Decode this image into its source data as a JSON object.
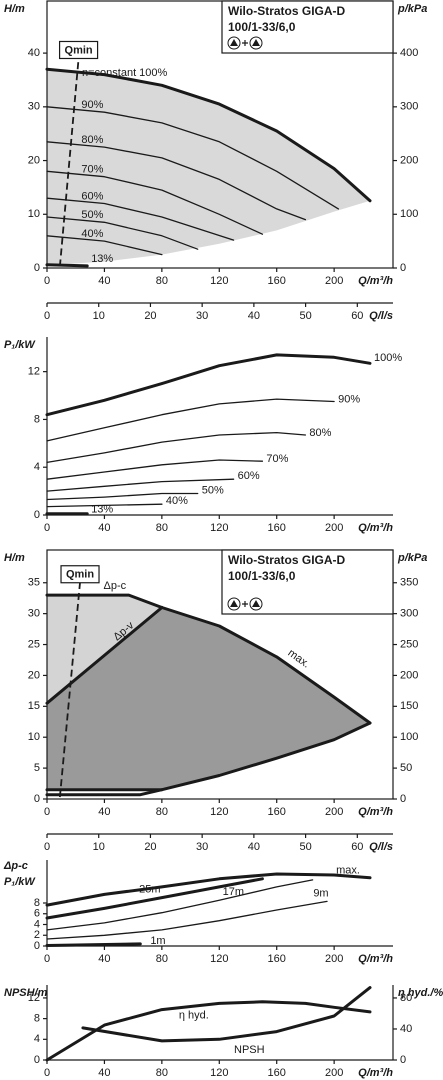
{
  "chart_data": [
    {
      "type": "line",
      "title": "Wilo-Stratos GIGA-D",
      "subtitle": "100/1-33/6,0",
      "frame": "box",
      "ylabel": "H/m",
      "y2label": "p/kPa",
      "xlabel": "Q/m³/h",
      "x2label": "Q/l/s",
      "xlim": [
        0,
        241
      ],
      "xticks": [
        0,
        40,
        80,
        120,
        160,
        200
      ],
      "x2lim": [
        0,
        66.9
      ],
      "x2ticks": [
        0,
        10,
        20,
        30,
        40,
        50,
        60
      ],
      "ylim": [
        0,
        49.7
      ],
      "yticks": [
        0,
        10,
        20,
        30,
        40
      ],
      "y2lim": [
        0,
        497
      ],
      "y2ticks": [
        0,
        100,
        200,
        300,
        400
      ],
      "annotation": "n=constant 100%",
      "qmin": {
        "label": "Qmin",
        "x": [
          9,
          22
        ],
        "values": [
          0.3,
          39
        ]
      },
      "regions": [
        {
          "color": "#d9d9d9",
          "x": [
            0,
            40,
            80,
            120,
            160,
            200,
            225,
            200,
            160,
            120,
            80,
            40,
            0
          ],
          "values": [
            37,
            36,
            34,
            30.5,
            25.5,
            18.5,
            12.5,
            10.5,
            7,
            4.5,
            2.5,
            1.2,
            0.5
          ]
        }
      ],
      "series": [
        {
          "color": "#1a1a1a",
          "style": "thick",
          "x": [
            0,
            40,
            80,
            120,
            160,
            200,
            225
          ],
          "values": [
            37,
            36,
            34,
            30.5,
            25.5,
            18.5,
            12.5
          ]
        },
        {
          "name": "90%",
          "color": "#1a1a1a",
          "style": "thin",
          "x": [
            0,
            40,
            80,
            120,
            160,
            203
          ],
          "values": [
            30,
            29,
            27,
            23.5,
            18,
            11
          ]
        },
        {
          "name": "80%",
          "color": "#1a1a1a",
          "style": "thin",
          "x": [
            0,
            40,
            80,
            120,
            160,
            180
          ],
          "values": [
            23.5,
            22.5,
            20.5,
            16.5,
            11,
            9
          ]
        },
        {
          "name": "70%",
          "color": "#1a1a1a",
          "style": "thin",
          "x": [
            0,
            40,
            80,
            120,
            150
          ],
          "values": [
            18,
            17,
            14.5,
            10,
            6.3
          ]
        },
        {
          "name": "60%",
          "color": "#1a1a1a",
          "style": "thin",
          "x": [
            0,
            40,
            80,
            130
          ],
          "values": [
            13,
            12,
            9.5,
            5.2
          ]
        },
        {
          "name": "50%",
          "color": "#1a1a1a",
          "style": "thin",
          "x": [
            0,
            40,
            80,
            105
          ],
          "values": [
            9.5,
            8.5,
            6,
            3.5
          ]
        },
        {
          "name": "40%",
          "color": "#1a1a1a",
          "style": "thin",
          "x": [
            0,
            40,
            80
          ],
          "values": [
            6,
            5,
            2.5
          ]
        },
        {
          "name": "13%",
          "color": "#1a1a1a",
          "style": "thick",
          "x": [
            0,
            28
          ],
          "values": [
            0.6,
            0.4
          ]
        }
      ]
    },
    {
      "type": "line",
      "frame": "axes",
      "ylabel": "P₁/kW",
      "xlabel": "Q/m³/h",
      "xlim": [
        0,
        241
      ],
      "xticks": [
        0,
        40,
        80,
        120,
        160,
        200
      ],
      "ylim": [
        0,
        14.9
      ],
      "yticks": [
        0,
        4,
        8,
        12
      ],
      "series": [
        {
          "name": "100%",
          "color": "#1a1a1a",
          "style": "thick",
          "x": [
            0,
            40,
            80,
            120,
            160,
            200,
            225
          ],
          "values": [
            8.4,
            9.6,
            11,
            12.5,
            13.4,
            13.2,
            12.7
          ]
        },
        {
          "name": "90%",
          "color": "#1a1a1a",
          "style": "thin",
          "x": [
            0,
            40,
            80,
            120,
            160,
            200
          ],
          "values": [
            6.2,
            7.3,
            8.4,
            9.3,
            9.7,
            9.5
          ]
        },
        {
          "name": "80%",
          "color": "#1a1a1a",
          "style": "thin",
          "x": [
            0,
            40,
            80,
            120,
            160,
            180
          ],
          "values": [
            4.4,
            5.2,
            6.1,
            6.7,
            6.9,
            6.7
          ]
        },
        {
          "name": "70%",
          "color": "#1a1a1a",
          "style": "thin",
          "x": [
            0,
            40,
            80,
            120,
            150
          ],
          "values": [
            3,
            3.6,
            4.2,
            4.6,
            4.5
          ]
        },
        {
          "name": "60%",
          "color": "#1a1a1a",
          "style": "thin",
          "x": [
            0,
            40,
            80,
            130
          ],
          "values": [
            2,
            2.4,
            2.8,
            3
          ]
        },
        {
          "name": "50%",
          "color": "#1a1a1a",
          "style": "thin",
          "x": [
            0,
            40,
            80,
            105
          ],
          "values": [
            1.3,
            1.5,
            1.8,
            1.8
          ]
        },
        {
          "name": "40%",
          "color": "#1a1a1a",
          "style": "thin",
          "x": [
            0,
            40,
            80
          ],
          "values": [
            0.7,
            0.8,
            0.9
          ]
        },
        {
          "name": "13%",
          "color": "#1a1a1a",
          "style": "thick",
          "x": [
            0,
            28
          ],
          "values": [
            0.1,
            0.1
          ]
        }
      ]
    },
    {
      "type": "line",
      "title": "Wilo-Stratos GIGA-D",
      "subtitle": "100/1-33/6,0",
      "frame": "box",
      "ylabel": "H/m",
      "y2label": "p/kPa",
      "xlabel": "Q/m³/h",
      "x2label": "Q/l/s",
      "xlim": [
        0,
        241
      ],
      "xticks": [
        0,
        40,
        80,
        120,
        160,
        200
      ],
      "x2lim": [
        0,
        66.9
      ],
      "x2ticks": [
        0,
        10,
        20,
        30,
        40,
        50,
        60
      ],
      "ylim": [
        0,
        40.3
      ],
      "yticks": [
        0,
        5,
        10,
        15,
        20,
        25,
        30,
        35
      ],
      "y2lim": [
        0,
        403
      ],
      "y2ticks": [
        0,
        50,
        100,
        150,
        200,
        250,
        300,
        350
      ],
      "qmin": {
        "label": "Qmin",
        "x": [
          9,
          23
        ],
        "values": [
          0.3,
          35
        ]
      },
      "regions": [
        {
          "color": "#d4d4d4",
          "x": [
            0,
            57,
            80,
            0
          ],
          "values": [
            33,
            33,
            31,
            15.5
          ]
        },
        {
          "color": "#9a9a9a",
          "x": [
            0,
            80,
            120,
            160,
            200,
            225,
            200,
            160,
            120,
            80,
            0
          ],
          "values": [
            15.5,
            31,
            28,
            23,
            16.5,
            12.3,
            9.6,
            6.6,
            3.8,
            1.5,
            1.5
          ]
        }
      ],
      "series": [
        {
          "name": "Δp-c",
          "color": "#1a1a1a",
          "style": "thick",
          "x": [
            0,
            57,
            80
          ],
          "values": [
            33,
            33,
            31
          ]
        },
        {
          "name": "Δp-v",
          "color": "#1a1a1a",
          "style": "thick",
          "x": [
            0,
            80
          ],
          "values": [
            15.5,
            31
          ]
        },
        {
          "name": "max.",
          "color": "#1a1a1a",
          "style": "thick",
          "x": [
            80,
            120,
            160,
            200,
            225
          ],
          "values": [
            31,
            28,
            23,
            16.5,
            12.3
          ]
        },
        {
          "color": "#1a1a1a",
          "style": "thick",
          "x": [
            0,
            80
          ],
          "values": [
            1.5,
            1.5
          ]
        },
        {
          "color": "#1a1a1a",
          "style": "thick",
          "x": [
            0,
            65,
            80,
            120,
            160,
            200,
            225
          ],
          "values": [
            0.7,
            0.7,
            1.5,
            3.8,
            6.6,
            9.6,
            12.3
          ]
        }
      ]
    },
    {
      "type": "line",
      "frame": "axes",
      "ylabel": [
        "Δp-c",
        "P₁/kW"
      ],
      "xlabel": "Q/m³/h",
      "xlim": [
        0,
        241
      ],
      "xticks": [
        0,
        40,
        80,
        120,
        160,
        200
      ],
      "ylim": [
        0,
        16
      ],
      "yticks": [
        0,
        2,
        4,
        6,
        8
      ],
      "series": [
        {
          "name": "max.",
          "color": "#1a1a1a",
          "style": "thick",
          "x": [
            0,
            40,
            80,
            120,
            160,
            200,
            225
          ],
          "values": [
            7.6,
            9.6,
            11,
            12.5,
            13.4,
            13.2,
            12.7
          ]
        },
        {
          "name": "25m",
          "color": "#1a1a1a",
          "style": "thick",
          "x": [
            0,
            40,
            80,
            120,
            150
          ],
          "values": [
            5.2,
            7,
            9,
            11,
            12.5
          ]
        },
        {
          "name": "17m",
          "color": "#1a1a1a",
          "style": "thin",
          "x": [
            0,
            40,
            80,
            120,
            160,
            185
          ],
          "values": [
            3,
            4.3,
            6.2,
            8.5,
            11,
            12.3
          ]
        },
        {
          "name": "9m",
          "color": "#1a1a1a",
          "style": "thin",
          "x": [
            0,
            40,
            80,
            120,
            160,
            195
          ],
          "values": [
            1.3,
            2,
            3,
            4.7,
            6.7,
            8.3
          ]
        },
        {
          "name": "1m",
          "color": "#1a1a1a",
          "style": "thick",
          "x": [
            0,
            65
          ],
          "values": [
            0.1,
            0.4
          ]
        }
      ]
    },
    {
      "type": "line",
      "frame": "axes",
      "ylabel": "NPSH/m",
      "y2label": "η hyd./%",
      "xlabel": "Q/m³/h",
      "xlim": [
        0,
        241
      ],
      "xticks": [
        0,
        40,
        80,
        120,
        160,
        200
      ],
      "ylim": [
        0,
        14.5
      ],
      "yticks": [
        0,
        4,
        8,
        12
      ],
      "y2lim": [
        0,
        96.7
      ],
      "y2ticks": [
        0,
        40,
        80
      ],
      "series": [
        {
          "name": "η hyd.",
          "color": "#1a1a1a",
          "style": "thick",
          "axis": "y2",
          "x": [
            0,
            40,
            80,
            120,
            150,
            180,
            200,
            225
          ],
          "values": [
            0,
            45,
            65,
            73,
            75,
            73,
            68,
            62
          ]
        },
        {
          "name": "NPSH",
          "color": "#1a1a1a",
          "style": "thick",
          "x": [
            25,
            80,
            120,
            160,
            200,
            225
          ],
          "values": [
            6.2,
            3.7,
            4,
            5.5,
            8.5,
            14
          ]
        }
      ]
    }
  ]
}
